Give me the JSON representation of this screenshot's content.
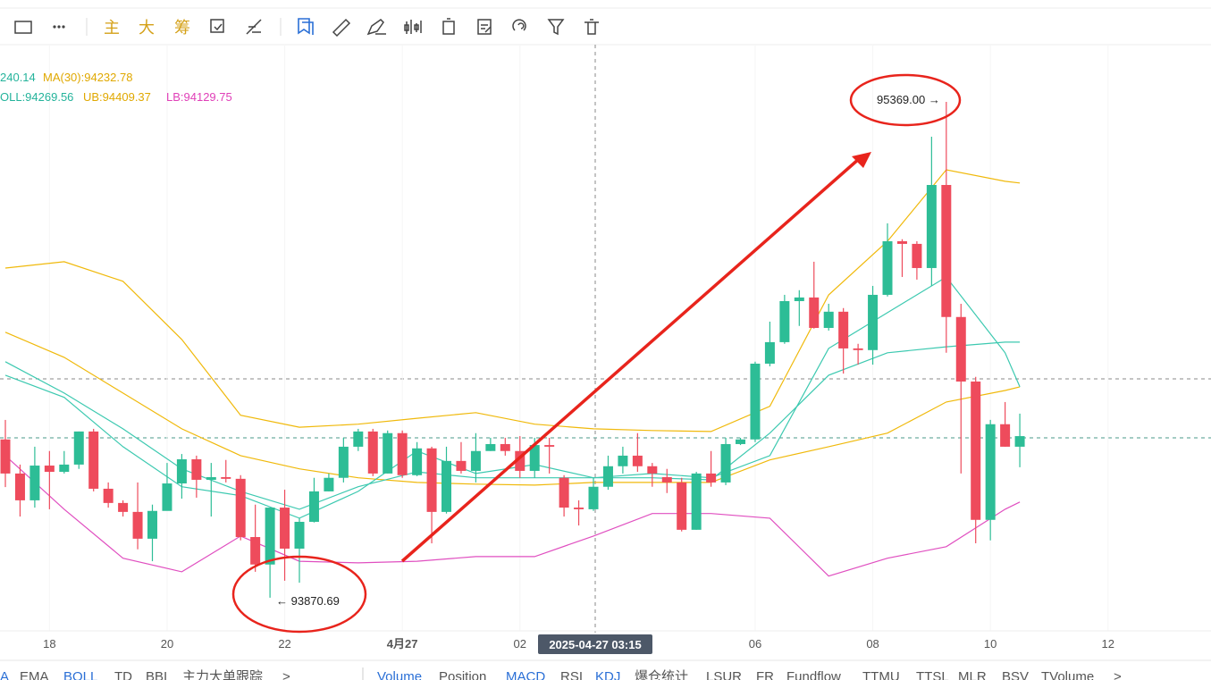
{
  "toolbar": {
    "labels": [
      "主",
      "大",
      "筹"
    ]
  },
  "chart_data": {
    "type": "candlestick",
    "legend": {
      "line1": [
        "240.14",
        "MA(30):94232.78"
      ],
      "line2": [
        "OLL:94269.56",
        "UB:94409.37",
        "LB:94129.75"
      ]
    },
    "annotations": {
      "high": "95369.00 →",
      "low": "← 93870.69"
    },
    "crosshair_label": "2025-04-27 03:15",
    "up_color": "#2dbd96",
    "down_color": "#ee4b5c",
    "xlim": [
      -0.365,
      82.005
    ],
    "ylim": [
      93622,
      95677
    ],
    "xticks": [
      {
        "value": 3,
        "label": "18"
      },
      {
        "value": 11,
        "label": "20"
      },
      {
        "value": 19,
        "label": "22"
      },
      {
        "value": 27,
        "label": "4月27"
      },
      {
        "value": 35,
        "label": "02"
      },
      {
        "value": 51,
        "label": "06"
      },
      {
        "value": 59,
        "label": "08"
      },
      {
        "value": 67,
        "label": "10"
      },
      {
        "value": 75,
        "label": "12"
      }
    ],
    "x": [
      0,
      1,
      2,
      3,
      4,
      5,
      6,
      7,
      8,
      9,
      10,
      11,
      12,
      13,
      14,
      15,
      16,
      17,
      18,
      19,
      20,
      21,
      22,
      23,
      24,
      25,
      26,
      27,
      28,
      29,
      30,
      31,
      32,
      33,
      34,
      35,
      36,
      37,
      38,
      39,
      40,
      41,
      42,
      43,
      44,
      45,
      46,
      47,
      48,
      49,
      50,
      51,
      52,
      53,
      54,
      55,
      56,
      57,
      58,
      59,
      60,
      61,
      62,
      63,
      64,
      65,
      66,
      67,
      68,
      69
    ],
    "open": [
      94349,
      94246,
      94165,
      94270,
      94251,
      94273,
      94373,
      94200,
      94157,
      94130,
      94049,
      94133,
      94216,
      94289,
      94227,
      94235,
      94230,
      94054,
      93971,
      94143,
      94019,
      94100,
      94192,
      94233,
      94327,
      94373,
      94246,
      94368,
      94241,
      94322,
      94130,
      94284,
      94254,
      94314,
      94335,
      94314,
      94254,
      94332,
      94233,
      94143,
      94138,
      94206,
      94268,
      94300,
      94268,
      94235,
      94219,
      94076,
      94246,
      94219,
      94335,
      94349,
      94578,
      94643,
      94767,
      94778,
      94686,
      94735,
      94624,
      94619,
      94786,
      94948,
      94940,
      94867,
      95118,
      94719,
      94524,
      94106,
      94395,
      94327
    ],
    "high": [
      94408,
      94273,
      94327,
      94314,
      94314,
      94373,
      94381,
      94219,
      94165,
      94219,
      94152,
      94278,
      94305,
      94300,
      94278,
      94287,
      94241,
      94152,
      94143,
      94197,
      94111,
      94233,
      94246,
      94354,
      94381,
      94381,
      94376,
      94376,
      94341,
      94327,
      94327,
      94341,
      94368,
      94354,
      94354,
      94359,
      94354,
      94354,
      94241,
      94165,
      94233,
      94300,
      94327,
      94368,
      94278,
      94260,
      94233,
      94251,
      94314,
      94354,
      94354,
      94584,
      94705,
      94786,
      94800,
      94886,
      94759,
      94746,
      94638,
      94813,
      95002,
      94954,
      94948,
      95264,
      95369,
      94759,
      94538,
      94408,
      94462,
      94427
    ],
    "low": [
      94205,
      94116,
      94143,
      94138,
      94246,
      94260,
      94192,
      94143,
      94116,
      94017,
      93981,
      94138,
      94170,
      94173,
      94116,
      94219,
      94044,
      93949,
      93870.69,
      93922,
      93916,
      94098,
      94192,
      94219,
      94314,
      94238,
      94246,
      94233,
      94238,
      94035,
      94125,
      94246,
      94219,
      94314,
      94300,
      94233,
      94233,
      94246,
      94116,
      94089,
      94133,
      94197,
      94246,
      94251,
      94206,
      94187,
      94071,
      94076,
      94206,
      94211,
      94332,
      94341,
      94570,
      94638,
      94692,
      94684,
      94678,
      94548,
      94575,
      94575,
      94781,
      94840,
      94832,
      94813,
      94611,
      94246,
      94035,
      94044,
      94327,
      94265
    ],
    "close": [
      94246,
      94165,
      94270,
      94251,
      94273,
      94373,
      94200,
      94157,
      94130,
      94049,
      94133,
      94216,
      94289,
      94227,
      94235,
      94230,
      94054,
      93971,
      94143,
      94019,
      94100,
      94192,
      94233,
      94327,
      94373,
      94246,
      94368,
      94241,
      94322,
      94130,
      94284,
      94254,
      94314,
      94335,
      94314,
      94254,
      94332,
      94327,
      94143,
      94138,
      94206,
      94268,
      94300,
      94268,
      94246,
      94219,
      94076,
      94246,
      94219,
      94335,
      94349,
      94578,
      94643,
      94767,
      94778,
      94686,
      94735,
      94624,
      94619,
      94786,
      94948,
      94940,
      94867,
      95118,
      94719,
      94524,
      94106,
      94395,
      94327,
      94359
    ],
    "indicator_x": [
      0,
      4,
      8,
      12,
      16,
      20,
      24,
      28,
      32,
      36,
      40,
      44,
      48,
      52,
      56,
      60,
      64,
      68,
      69
    ],
    "indicators": [
      {
        "color": "#f0b90b",
        "values": [
          94867,
          94886,
          94827,
          94651,
          94422,
          94386,
          94395,
          94413,
          94430,
          94395,
          94381,
          94376,
          94373,
          94449,
          94786,
          94948,
          95164,
          95129,
          95124
        ]
      },
      {
        "color": "#f0b90b",
        "values": [
          94673,
          94597,
          94489,
          94381,
          94300,
          94260,
          94233,
          94219,
          94214,
          94211,
          94219,
          94219,
          94219,
          94287,
          94327,
          94368,
          94462,
          94497,
          94508
        ]
      },
      {
        "color": "#3cc9b0",
        "values": [
          94584,
          94489,
          94381,
          94260,
          94192,
          94138,
          94206,
          94251,
          94233,
          94233,
          94233,
          94233,
          94227,
          94368,
          94543,
          94611,
          94629,
          94643,
          94643
        ]
      },
      {
        "color": "#3cc9b0",
        "values": [
          94543,
          94476,
          94327,
          94206,
          94179,
          94111,
          94192,
          94314,
          94246,
          94273,
          94233,
          94246,
          94233,
          94300,
          94624,
          94732,
          94840,
          94611,
          94508
        ]
      },
      {
        "color": "#e04fc0",
        "values": [
          94300,
          94138,
          93990,
          93949,
          94057,
          93981,
          93976,
          93981,
          93995,
          93995,
          94057,
          94125,
          94125,
          94111,
          93936,
          93990,
          94025,
          94138,
          94160
        ]
      }
    ]
  },
  "bottom_tabs": {
    "left": [
      "A",
      "EMA",
      "BOLL",
      "TD",
      "BBI",
      "主力大单跟踪",
      ">"
    ],
    "right": [
      "Volume",
      "Position",
      "MACD",
      "RSI",
      "KDJ",
      "爆仓统计",
      "LSUR",
      "FR",
      "Fundflow",
      "TTMU",
      "TTSL",
      "MLR",
      "BSV",
      "TVolume",
      ">"
    ]
  }
}
